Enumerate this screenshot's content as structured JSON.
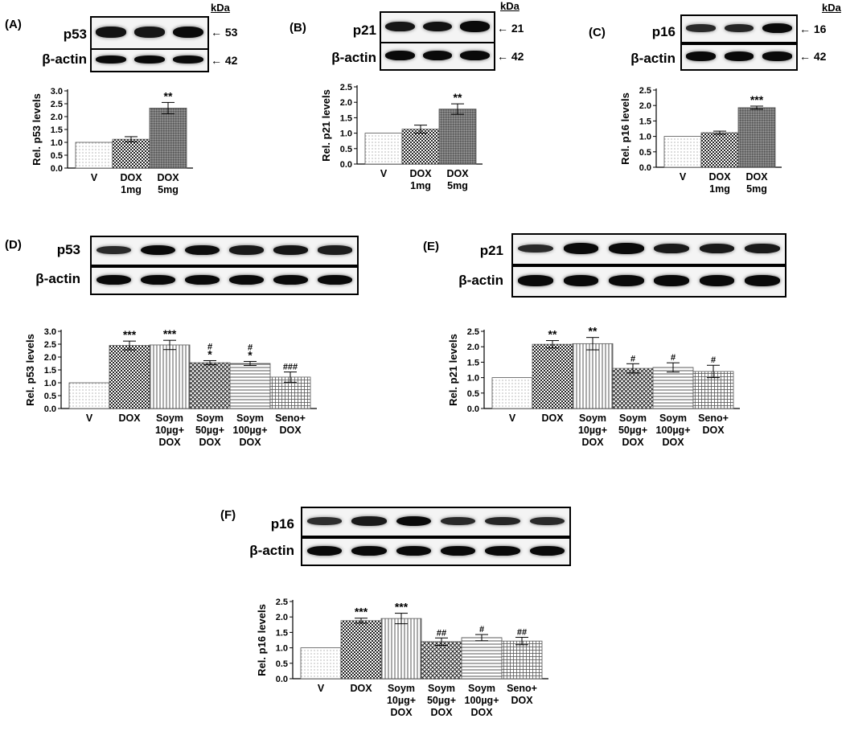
{
  "panels": {
    "A": {
      "label": "(A)",
      "kda": "kDa",
      "rows": [
        {
          "name": "p53",
          "size": "53",
          "intensity": [
            0.9,
            0.85,
            1.0
          ]
        },
        {
          "name": "β-actin",
          "size": "42",
          "intensity": [
            1.0,
            1.0,
            1.0
          ]
        }
      ]
    },
    "B": {
      "label": "(B)",
      "kda": "kDa",
      "rows": [
        {
          "name": "p21",
          "size": "21",
          "intensity": [
            0.85,
            0.9,
            1.0
          ]
        },
        {
          "name": "β-actin",
          "size": "42",
          "intensity": [
            1.0,
            1.0,
            1.0
          ]
        }
      ]
    },
    "C": {
      "label": "(C)",
      "kda": "kDa",
      "rows": [
        {
          "name": "p16",
          "size": "16",
          "intensity": [
            0.6,
            0.65,
            1.0
          ]
        },
        {
          "name": "β-actin",
          "size": "42",
          "intensity": [
            1.0,
            1.0,
            1.0
          ]
        }
      ]
    },
    "D": {
      "label": "(D)",
      "rows": [
        {
          "name": "p53",
          "intensity": [
            0.6,
            1.0,
            0.95,
            0.8,
            0.85,
            0.75
          ]
        },
        {
          "name": "β-actin",
          "intensity": [
            1.0,
            1.0,
            1.0,
            1.0,
            1.0,
            1.0
          ]
        }
      ]
    },
    "E": {
      "label": "(E)",
      "rows": [
        {
          "name": "p21",
          "intensity": [
            0.6,
            1.0,
            1.0,
            0.8,
            0.8,
            0.8
          ]
        },
        {
          "name": "β-actin",
          "intensity": [
            1.0,
            1.0,
            1.0,
            1.0,
            1.0,
            1.0
          ]
        }
      ]
    },
    "F": {
      "label": "(F)",
      "rows": [
        {
          "name": "p16",
          "intensity": [
            0.55,
            0.8,
            1.0,
            0.6,
            0.65,
            0.6
          ]
        },
        {
          "name": "β-actin",
          "intensity": [
            1.0,
            1.0,
            1.0,
            1.0,
            1.0,
            1.0
          ]
        }
      ]
    }
  },
  "chart_data": [
    {
      "id": "A",
      "type": "bar",
      "ylabel": "Rel. p53 levels",
      "ylim": [
        0,
        3.0
      ],
      "step": 0.5,
      "categories": [
        [
          "V"
        ],
        [
          "DOX",
          "1mg"
        ],
        [
          "DOX",
          "5mg"
        ]
      ],
      "values": [
        1.0,
        1.12,
        2.33
      ],
      "errors": [
        0,
        0.1,
        0.22
      ],
      "annotations": [
        [],
        [],
        [
          "**"
        ]
      ],
      "patterns": [
        "dots",
        "checker",
        "dark"
      ]
    },
    {
      "id": "B",
      "type": "bar",
      "ylabel": "Rel. p21 levels",
      "ylim": [
        0,
        2.5
      ],
      "step": 0.5,
      "categories": [
        [
          "V"
        ],
        [
          "DOX",
          "1mg"
        ],
        [
          "DOX",
          "5mg"
        ]
      ],
      "values": [
        1.0,
        1.13,
        1.78
      ],
      "errors": [
        0,
        0.13,
        0.17
      ],
      "annotations": [
        [],
        [],
        [
          "**"
        ]
      ],
      "patterns": [
        "dots",
        "checker",
        "dark"
      ]
    },
    {
      "id": "C",
      "type": "bar",
      "ylabel": "Rel. p16 levels",
      "ylim": [
        0,
        2.5
      ],
      "step": 0.5,
      "categories": [
        [
          "V"
        ],
        [
          "DOX",
          "1mg"
        ],
        [
          "DOX",
          "5mg"
        ]
      ],
      "values": [
        1.0,
        1.12,
        1.93
      ],
      "errors": [
        0,
        0.05,
        0.05
      ],
      "annotations": [
        [],
        [],
        [
          "***"
        ]
      ],
      "patterns": [
        "dots",
        "checker",
        "dark"
      ]
    },
    {
      "id": "D",
      "type": "bar",
      "ylabel": "Rel. p53 levels",
      "ylim": [
        0,
        3.0
      ],
      "step": 0.5,
      "categories": [
        [
          "V"
        ],
        [
          "DOX"
        ],
        [
          "Soym",
          "10µg+",
          "DOX"
        ],
        [
          "Soym",
          "50µg+",
          "DOX"
        ],
        [
          "Soym",
          "100µg+",
          "DOX"
        ],
        [
          "Seno+",
          "DOX"
        ]
      ],
      "values": [
        1.0,
        2.45,
        2.47,
        1.78,
        1.75,
        1.22
      ],
      "errors": [
        0,
        0.17,
        0.18,
        0.08,
        0.08,
        0.2
      ],
      "annotations": [
        [],
        [
          "***"
        ],
        [
          "***"
        ],
        [
          "#",
          "*"
        ],
        [
          "#",
          "*"
        ],
        [
          "###"
        ]
      ],
      "patterns": [
        "dots",
        "checker",
        "vlines",
        "xhatch",
        "hlines",
        "grid"
      ]
    },
    {
      "id": "E",
      "type": "bar",
      "ylabel": "Rel. p21 levels",
      "ylim": [
        0,
        2.5
      ],
      "step": 0.5,
      "categories": [
        [
          "V"
        ],
        [
          "DOX"
        ],
        [
          "Soym",
          "10µg+",
          "DOX"
        ],
        [
          "Soym",
          "50µg+",
          "DOX"
        ],
        [
          "Soym",
          "100µg+",
          "DOX"
        ],
        [
          "Seno+",
          "DOX"
        ]
      ],
      "values": [
        1.0,
        2.08,
        2.1,
        1.3,
        1.33,
        1.2
      ],
      "errors": [
        0,
        0.12,
        0.2,
        0.15,
        0.15,
        0.2
      ],
      "annotations": [
        [],
        [
          "**"
        ],
        [
          "**"
        ],
        [
          "#"
        ],
        [
          "#"
        ],
        [
          "#"
        ]
      ],
      "patterns": [
        "dots",
        "checker",
        "vlines",
        "xhatch",
        "hlines",
        "grid"
      ]
    },
    {
      "id": "F",
      "type": "bar",
      "ylabel": "Rel. p16 levels",
      "ylim": [
        0,
        2.5
      ],
      "step": 0.5,
      "categories": [
        [
          "V"
        ],
        [
          "DOX"
        ],
        [
          "Soym",
          "10µg+",
          "DOX"
        ],
        [
          "Soym",
          "50µg+",
          "DOX"
        ],
        [
          "Soym",
          "100µg+",
          "DOX"
        ],
        [
          "Seno+",
          "DOX"
        ]
      ],
      "values": [
        1.0,
        1.88,
        1.95,
        1.2,
        1.33,
        1.22
      ],
      "errors": [
        0,
        0.08,
        0.17,
        0.12,
        0.1,
        0.12
      ],
      "annotations": [
        [],
        [
          "***"
        ],
        [
          "***"
        ],
        [
          "##"
        ],
        [
          "#"
        ],
        [
          "##"
        ]
      ],
      "patterns": [
        "dots",
        "checker",
        "vlines",
        "xhatch",
        "hlines",
        "grid"
      ]
    }
  ]
}
